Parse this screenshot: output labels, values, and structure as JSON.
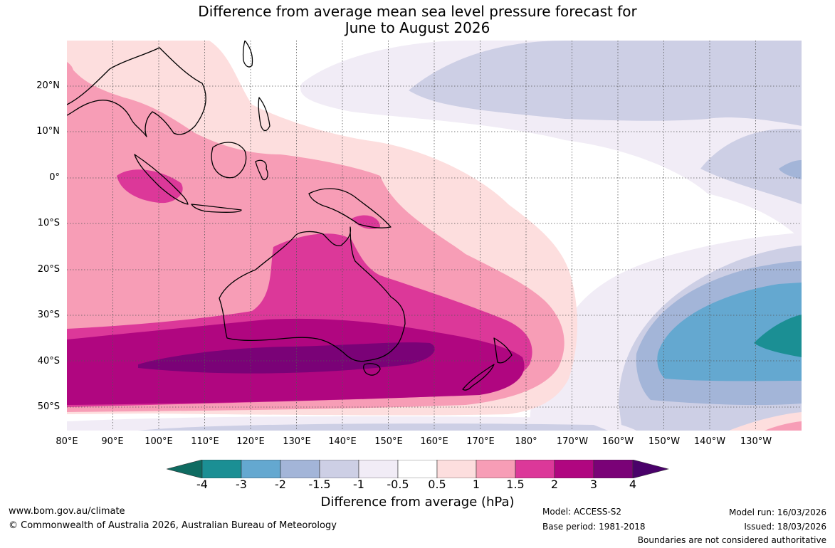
{
  "title": {
    "line1": "Difference from average mean sea level pressure forecast for",
    "line2": "June to August 2026"
  },
  "axes": {
    "lat_labels": [
      "20°N",
      "10°N",
      "0°",
      "10°S",
      "20°S",
      "30°S",
      "40°S",
      "50°S"
    ],
    "lon_labels": [
      "80°E",
      "90°E",
      "100°E",
      "110°E",
      "120°E",
      "130°E",
      "140°E",
      "150°E",
      "160°E",
      "170°E",
      "180°",
      "170°W",
      "160°W",
      "150°W",
      "140°W",
      "130°W"
    ],
    "lat_range": [
      -55,
      30
    ],
    "lon_range": [
      80,
      240
    ]
  },
  "colorbar": {
    "ticks": [
      "-4",
      "-3",
      "-2",
      "-1.5",
      "-1",
      "-0.5",
      "0.5",
      "1",
      "1.5",
      "2",
      "3",
      "4"
    ],
    "colors": [
      "#0f6b61",
      "#1b8f94",
      "#64a8d0",
      "#a3b5d8",
      "#cdcfe5",
      "#f1ecf6",
      "#ffffff",
      "#fddede",
      "#f79db6",
      "#dc3899",
      "#b00680",
      "#7a0277",
      "#4a026a"
    ],
    "title": "Difference from average (hPa)"
  },
  "footer": {
    "website": "www.bom.gov.au/climate",
    "copyright": "© Commonwealth of Australia 2026, Australian Bureau of Meteorology",
    "model": "Model: ACCESS-S2",
    "base_period": "Base period: 1981-2018",
    "model_run": "Model run: 16/03/2026",
    "issued": "Issued: 18/03/2026",
    "disclaimer": "Boundaries are not considered authoritative"
  }
}
